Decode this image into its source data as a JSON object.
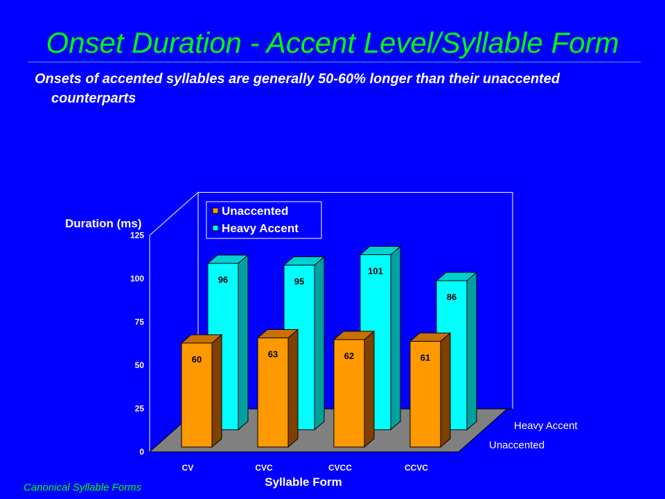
{
  "slide": {
    "title": "Onset Duration - Accent Level/Syllable Form",
    "subtitle": "Onsets of accented syllables are generally 50-60% longer than their unaccented counterparts",
    "footer": "Canonical Syllable Forms"
  },
  "colors": {
    "background": "#0000FF",
    "title": "#00FF00",
    "unaccented": "#FF9900",
    "heavy_accent": "#00FFFF",
    "chart_panel": "#FFFFFF",
    "floor": "#808080"
  },
  "chart_data": {
    "type": "bar",
    "subtype": "3d-grouped",
    "categories": [
      "CV",
      "CVC",
      "CVCC",
      "CCVC"
    ],
    "series": [
      {
        "name": "Unaccented",
        "values": [
          60,
          63,
          62,
          61
        ]
      },
      {
        "name": "Heavy Accent",
        "values": [
          96,
          95,
          101,
          86
        ]
      }
    ],
    "xlabel": "Syllable Form",
    "ylabel": "Duration (ms)",
    "ylim": [
      0,
      125
    ],
    "yticks": [
      0,
      25,
      50,
      75,
      100,
      125
    ],
    "depth_labels": [
      "Heavy Accent",
      "Unaccented"
    ],
    "legend": "top-left",
    "grid": false
  }
}
